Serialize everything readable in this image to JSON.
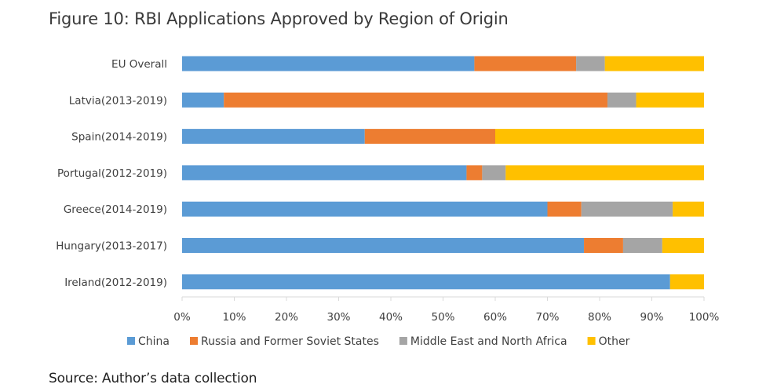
{
  "figure": {
    "title": "Figure 10: RBI Applications Approved by Region of Origin",
    "source": "Source: Author’s data collection"
  },
  "chart_data": {
    "type": "bar",
    "orientation": "horizontal",
    "stacked": "percent",
    "title": "",
    "xlabel": "",
    "ylabel": "",
    "xlim": [
      0,
      100
    ],
    "x_ticks": [
      "0%",
      "10%",
      "20%",
      "30%",
      "40%",
      "50%",
      "60%",
      "70%",
      "80%",
      "90%",
      "100%"
    ],
    "grid": false,
    "legend_position": "bottom",
    "categories": [
      "EU Overall",
      "Latvia(2013-2019)",
      "Spain(2014-2019)",
      "Portugal(2012-2019)",
      "Greece(2014-2019)",
      "Hungary(2013-2017)",
      "Ireland(2012-2019)"
    ],
    "series": [
      {
        "name": "China",
        "color": "#5b9bd5",
        "values": [
          56,
          8,
          35,
          54.5,
          70,
          77,
          93.5
        ]
      },
      {
        "name": "Russia and Former Soviet States",
        "color": "#ed7d31",
        "values": [
          19.5,
          73.5,
          25,
          3,
          6.5,
          7.5,
          0
        ]
      },
      {
        "name": "Middle East and North Africa",
        "color": "#a5a5a5",
        "values": [
          5.5,
          5.5,
          0,
          4.5,
          17.5,
          7.5,
          0
        ]
      },
      {
        "name": "Other",
        "color": "#ffc000",
        "values": [
          19,
          13,
          40,
          38,
          6,
          8,
          6.5
        ]
      }
    ]
  }
}
